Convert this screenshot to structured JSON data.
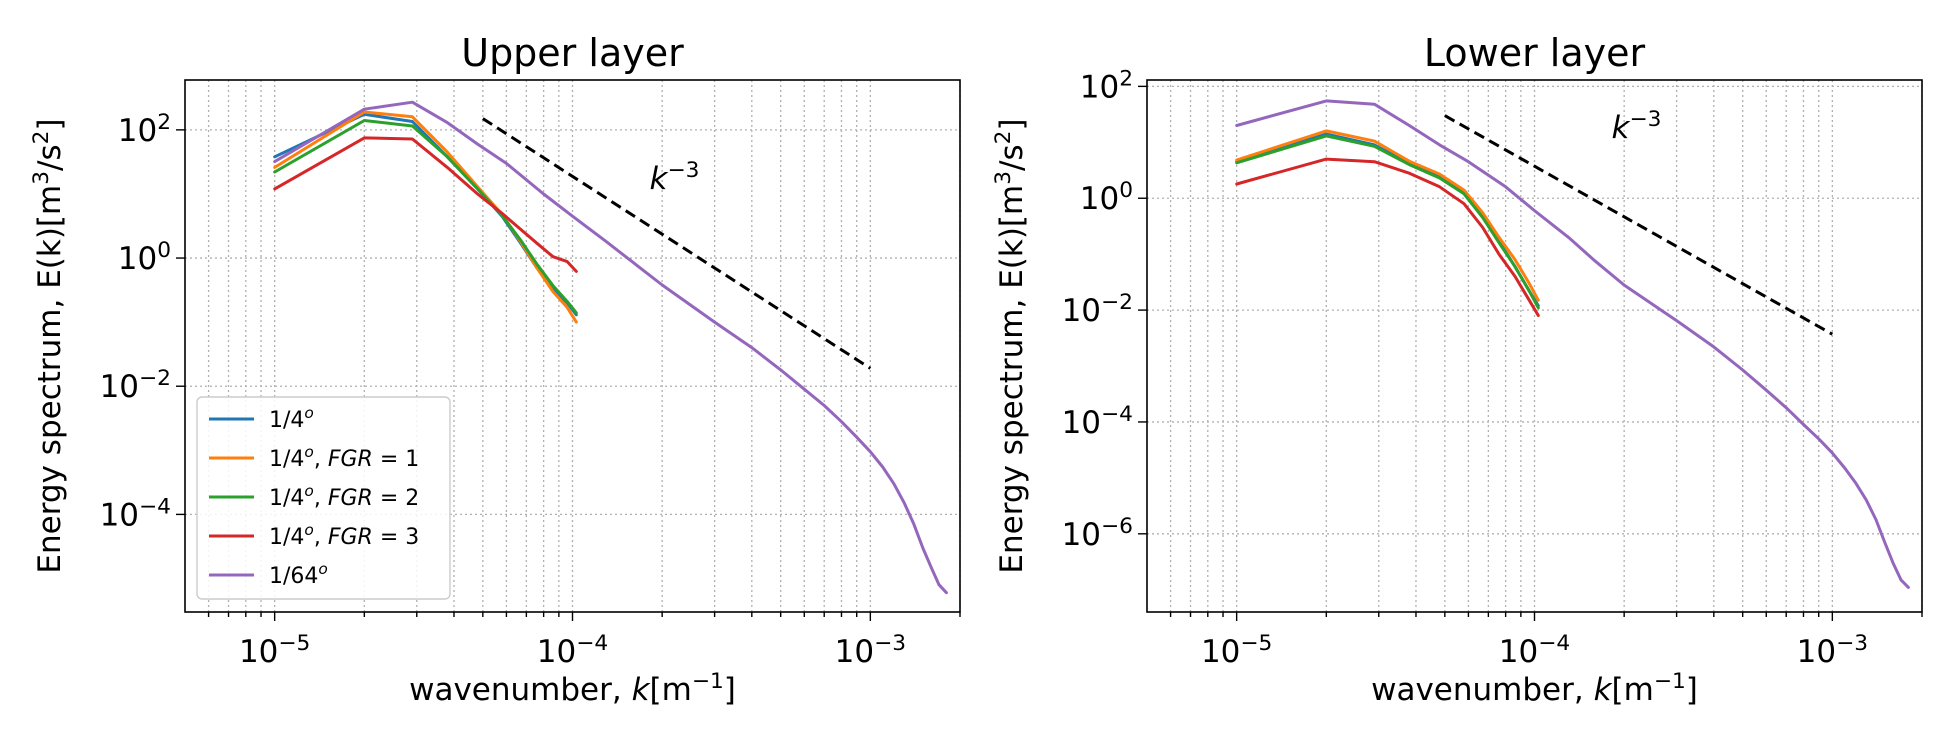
{
  "chart_data": [
    {
      "type": "line",
      "title": "Upper layer",
      "xlabel": "wavenumber, k[m⁻¹]",
      "ylabel": "Energy spectrum, E(k)[m³/s²]",
      "xscale": "log",
      "yscale": "log",
      "xlim": [
        5e-06,
        0.002
      ],
      "ylim": [
        3e-06,
        600
      ],
      "xticks": [
        {
          "value": 1e-05,
          "base": "10",
          "exp": "−5"
        },
        {
          "value": 0.0001,
          "base": "10",
          "exp": "−4"
        },
        {
          "value": 0.001,
          "base": "10",
          "exp": "−3"
        }
      ],
      "yticks": [
        {
          "value": 0.0001,
          "base": "10",
          "exp": "−4"
        },
        {
          "value": 0.01,
          "base": "10",
          "exp": "−2"
        },
        {
          "value": 1,
          "base": "10",
          "exp": "0"
        },
        {
          "value": 100,
          "base": "10",
          "exp": "2"
        }
      ],
      "grid": true,
      "legend": "lower-left",
      "series": [
        {
          "name": "1/4ᵒ",
          "color": "#1f77b4",
          "x": [
            1e-05,
            2e-05,
            2.9e-05,
            3.8e-05,
            4.8e-05,
            5.8e-05,
            6.7e-05,
            7.6e-05,
            8.6e-05,
            9.6e-05,
            0.000103
          ],
          "y": [
            38,
            175,
            135,
            38,
            12,
            4.5,
            1.7,
            0.7,
            0.33,
            0.2,
            0.13
          ]
        },
        {
          "name": "1/4ᵒ, FGR = 1",
          "color": "#ff7f0e",
          "x": [
            1e-05,
            2e-05,
            2.9e-05,
            3.8e-05,
            4.8e-05,
            5.8e-05,
            6.7e-05,
            7.6e-05,
            8.6e-05,
            9.6e-05,
            0.000103
          ],
          "y": [
            26,
            190,
            160,
            45,
            13,
            4.8,
            1.8,
            0.7,
            0.3,
            0.17,
            0.1
          ]
        },
        {
          "name": "1/4ᵒ, FGR = 2",
          "color": "#2ca02c",
          "x": [
            1e-05,
            2e-05,
            2.9e-05,
            3.8e-05,
            4.8e-05,
            5.8e-05,
            6.7e-05,
            7.6e-05,
            8.6e-05,
            9.6e-05,
            0.000103
          ],
          "y": [
            22,
            140,
            115,
            38,
            12,
            4.6,
            1.9,
            0.8,
            0.37,
            0.21,
            0.14
          ]
        },
        {
          "name": "1/4ᵒ, FGR = 3",
          "color": "#d62728",
          "x": [
            1e-05,
            2e-05,
            2.9e-05,
            3.8e-05,
            4.8e-05,
            5.8e-05,
            6.7e-05,
            7.6e-05,
            8.6e-05,
            9.6e-05,
            0.000103
          ],
          "y": [
            12,
            75,
            72,
            26,
            10,
            5,
            2.8,
            1.7,
            1.05,
            0.88,
            0.62
          ]
        },
        {
          "name": "1/64ᵒ",
          "color": "#9467bd",
          "x": [
            1e-05,
            2e-05,
            2.9e-05,
            3.8e-05,
            4.8e-05,
            6e-05,
            8e-05,
            0.0001,
            0.00013,
            0.00016,
            0.0002,
            0.0003,
            0.0004,
            0.0005,
            0.0006,
            0.0007,
            0.0008,
            0.0009,
            0.001,
            0.0011,
            0.0012,
            0.0013,
            0.0014,
            0.0015,
            0.0016,
            0.0017,
            0.0018
          ],
          "y": [
            32,
            210,
            270,
            130,
            60,
            30,
            10,
            4.5,
            1.8,
            0.85,
            0.38,
            0.1,
            0.04,
            0.018,
            0.009,
            0.005,
            0.0028,
            0.0016,
            0.00095,
            0.00055,
            0.0003,
            0.00015,
            7e-05,
            3e-05,
            1.5e-05,
            8e-06,
            6e-06
          ]
        }
      ],
      "reference_line": {
        "label_base": "k",
        "label_exp": "−3",
        "x": [
          5e-05,
          0.001
        ],
        "y": [
          150,
          0.019
        ],
        "label_x": 0.00022,
        "label_y": 12
      }
    },
    {
      "type": "line",
      "title": "Lower layer",
      "xlabel": "wavenumber, k[m⁻¹]",
      "ylabel": "Energy spectrum, E(k)[m³/s²]",
      "xscale": "log",
      "yscale": "log",
      "xlim": [
        5e-06,
        0.002
      ],
      "ylim": [
        4e-08,
        130
      ],
      "xticks": [
        {
          "value": 1e-05,
          "base": "10",
          "exp": "−5"
        },
        {
          "value": 0.0001,
          "base": "10",
          "exp": "−4"
        },
        {
          "value": 0.001,
          "base": "10",
          "exp": "−3"
        }
      ],
      "yticks": [
        {
          "value": 1e-06,
          "base": "10",
          "exp": "−6"
        },
        {
          "value": 0.0001,
          "base": "10",
          "exp": "−4"
        },
        {
          "value": 0.01,
          "base": "10",
          "exp": "−2"
        },
        {
          "value": 1,
          "base": "10",
          "exp": "0"
        },
        {
          "value": 100,
          "base": "10",
          "exp": "2"
        }
      ],
      "grid": true,
      "legend": "none",
      "series": [
        {
          "name": "1/4ᵒ",
          "color": "#1f77b4",
          "x": [
            1e-05,
            2e-05,
            2.9e-05,
            3.8e-05,
            4.8e-05,
            5.8e-05,
            6.7e-05,
            7.6e-05,
            8.6e-05,
            9.6e-05,
            0.000103
          ],
          "y": [
            4.5,
            14,
            9,
            4.2,
            2.5,
            1.3,
            0.5,
            0.17,
            0.06,
            0.022,
            0.012
          ]
        },
        {
          "name": "1/4ᵒ, FGR = 1",
          "color": "#ff7f0e",
          "x": [
            1e-05,
            2e-05,
            2.9e-05,
            3.8e-05,
            4.8e-05,
            5.8e-05,
            6.7e-05,
            7.6e-05,
            8.6e-05,
            9.6e-05,
            0.000103
          ],
          "y": [
            4.8,
            16,
            10.5,
            4.6,
            2.7,
            1.4,
            0.55,
            0.2,
            0.08,
            0.03,
            0.015
          ]
        },
        {
          "name": "1/4ᵒ, FGR = 2",
          "color": "#2ca02c",
          "x": [
            1e-05,
            2e-05,
            2.9e-05,
            3.8e-05,
            4.8e-05,
            5.8e-05,
            6.7e-05,
            7.6e-05,
            8.6e-05,
            9.6e-05,
            0.000103
          ],
          "y": [
            4.3,
            13,
            8.5,
            4,
            2.3,
            1.2,
            0.45,
            0.16,
            0.06,
            0.022,
            0.011
          ]
        },
        {
          "name": "1/4ᵒ, FGR = 3",
          "color": "#d62728",
          "x": [
            1e-05,
            2e-05,
            2.9e-05,
            3.8e-05,
            4.8e-05,
            5.8e-05,
            6.7e-05,
            7.6e-05,
            8.6e-05,
            9.6e-05,
            0.000103
          ],
          "y": [
            1.8,
            5,
            4.5,
            2.8,
            1.6,
            0.8,
            0.3,
            0.1,
            0.04,
            0.015,
            0.008
          ]
        },
        {
          "name": "1/64ᵒ",
          "color": "#9467bd",
          "x": [
            1e-05,
            2e-05,
            2.9e-05,
            3.8e-05,
            4.8e-05,
            6e-05,
            8e-05,
            0.0001,
            0.00013,
            0.00016,
            0.0002,
            0.0003,
            0.0004,
            0.0005,
            0.0006,
            0.0007,
            0.0008,
            0.0009,
            0.001,
            0.0011,
            0.0012,
            0.0013,
            0.0014,
            0.0015,
            0.0016,
            0.0017,
            0.0018
          ],
          "y": [
            20,
            55,
            48,
            20,
            9,
            4.5,
            1.6,
            0.6,
            0.2,
            0.075,
            0.028,
            0.0065,
            0.0022,
            0.00085,
            0.00037,
            0.00018,
            9e-05,
            5e-05,
            2.8e-05,
            1.5e-05,
            8e-06,
            4e-06,
            1.8e-06,
            7e-07,
            3e-07,
            1.5e-07,
            1.1e-07
          ]
        }
      ],
      "reference_line": {
        "label_base": "k",
        "label_exp": "−3",
        "x": [
          5e-05,
          0.001
        ],
        "y": [
          30,
          0.0037
        ],
        "label_x": 0.00022,
        "label_y": 12
      }
    }
  ]
}
